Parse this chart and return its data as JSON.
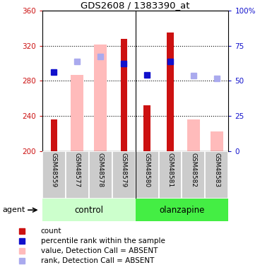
{
  "title": "GDS2608 / 1383390_at",
  "samples": [
    "GSM48559",
    "GSM48577",
    "GSM48578",
    "GSM48579",
    "GSM48580",
    "GSM48581",
    "GSM48582",
    "GSM48583"
  ],
  "groups": [
    "control",
    "control",
    "control",
    "control",
    "olanzapine",
    "olanzapine",
    "olanzapine",
    "olanzapine"
  ],
  "red_bars": [
    236,
    null,
    null,
    328,
    252,
    335,
    null,
    null
  ],
  "pink_bars": [
    null,
    287,
    321,
    null,
    null,
    null,
    236,
    222
  ],
  "blue_squares": [
    290,
    null,
    null,
    300,
    287,
    302,
    null,
    null
  ],
  "light_blue_squares": [
    null,
    302,
    308,
    null,
    null,
    null,
    286,
    283
  ],
  "ymin": 200,
  "ymax": 360,
  "yticks_left": [
    200,
    240,
    280,
    320,
    360
  ],
  "yticks_right": [
    0,
    25,
    50,
    75,
    100
  ],
  "red_color": "#cc1111",
  "pink_color": "#ffbbbb",
  "blue_color": "#1111cc",
  "light_blue_color": "#aaaaee",
  "control_bg_light": "#ccffcc",
  "control_bg_dark": "#44ee44",
  "olanzapine_bg_light": "#ccffcc",
  "olanzapine_bg_dark": "#44ee44",
  "sample_bg": "#cccccc",
  "legend_items": [
    "count",
    "percentile rank within the sample",
    "value, Detection Call = ABSENT",
    "rank, Detection Call = ABSENT"
  ]
}
